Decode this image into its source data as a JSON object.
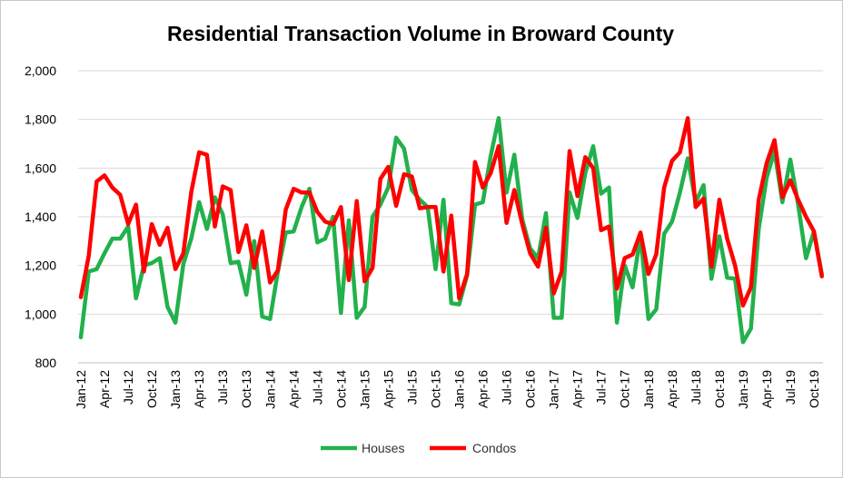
{
  "chart_data": {
    "type": "line",
    "title": "Residential Transaction Volume in Broward County",
    "xlabel": "",
    "ylabel": "",
    "ylim": [
      800,
      2000
    ],
    "y_ticks": [
      "800",
      "1,000",
      "1,200",
      "1,400",
      "1,600",
      "1,800",
      "2,000"
    ],
    "y_tick_values": [
      800,
      1000,
      1200,
      1400,
      1600,
      1800,
      2000
    ],
    "grid": true,
    "legend_position": "bottom",
    "x": [
      "Jan-12",
      "Feb-12",
      "Mar-12",
      "Apr-12",
      "May-12",
      "Jun-12",
      "Jul-12",
      "Aug-12",
      "Sep-12",
      "Oct-12",
      "Nov-12",
      "Dec-12",
      "Jan-13",
      "Feb-13",
      "Mar-13",
      "Apr-13",
      "May-13",
      "Jun-13",
      "Jul-13",
      "Aug-13",
      "Sep-13",
      "Oct-13",
      "Nov-13",
      "Dec-13",
      "Jan-14",
      "Feb-14",
      "Mar-14",
      "Apr-14",
      "May-14",
      "Jun-14",
      "Jul-14",
      "Aug-14",
      "Sep-14",
      "Oct-14",
      "Nov-14",
      "Dec-14",
      "Jan-15",
      "Feb-15",
      "Mar-15",
      "Apr-15",
      "May-15",
      "Jun-15",
      "Jul-15",
      "Aug-15",
      "Sep-15",
      "Oct-15",
      "Nov-15",
      "Dec-15",
      "Jan-16",
      "Feb-16",
      "Mar-16",
      "Apr-16",
      "May-16",
      "Jun-16",
      "Jul-16",
      "Aug-16",
      "Sep-16",
      "Oct-16",
      "Nov-16",
      "Dec-16",
      "Jan-17",
      "Feb-17",
      "Mar-17",
      "Apr-17",
      "May-17",
      "Jun-17",
      "Jul-17",
      "Aug-17",
      "Sep-17",
      "Oct-17",
      "Nov-17",
      "Dec-17",
      "Jan-18",
      "Feb-18",
      "Mar-18",
      "Apr-18",
      "May-18",
      "Jun-18",
      "Jul-18",
      "Aug-18",
      "Sep-18",
      "Oct-18",
      "Nov-18",
      "Dec-18",
      "Jan-19",
      "Feb-19",
      "Mar-19",
      "Apr-19",
      "May-19",
      "Jun-19",
      "Jul-19",
      "Aug-19",
      "Sep-19",
      "Oct-19",
      "Nov-19"
    ],
    "x_tick_labels": [
      "Jan-12",
      "Apr-12",
      "Jul-12",
      "Oct-12",
      "Jan-13",
      "Apr-13",
      "Jul-13",
      "Oct-13",
      "Jan-14",
      "Apr-14",
      "Jul-14",
      "Oct-14",
      "Jan-15",
      "Apr-15",
      "Jul-15",
      "Oct-15",
      "Jan-16",
      "Apr-16",
      "Jul-16",
      "Oct-16",
      "Jan-17",
      "Apr-17",
      "Jul-17",
      "Oct-17",
      "Jan-18",
      "Apr-18",
      "Jul-18",
      "Oct-18",
      "Jan-19",
      "Apr-19",
      "Jul-19",
      "Oct-19"
    ],
    "series": [
      {
        "name": "Houses",
        "color": "#22b14c",
        "values": [
          905,
          1175,
          1185,
          1250,
          1310,
          1310,
          1360,
          1065,
          1200,
          1210,
          1230,
          1030,
          965,
          1205,
          1310,
          1460,
          1350,
          1480,
          1410,
          1210,
          1215,
          1080,
          1300,
          990,
          980,
          1175,
          1335,
          1340,
          1440,
          1515,
          1295,
          1310,
          1400,
          1005,
          1385,
          985,
          1030,
          1400,
          1450,
          1520,
          1725,
          1680,
          1510,
          1470,
          1440,
          1185,
          1470,
          1045,
          1040,
          1160,
          1450,
          1460,
          1650,
          1805,
          1500,
          1655,
          1390,
          1270,
          1230,
          1415,
          985,
          985,
          1500,
          1395,
          1580,
          1690,
          1495,
          1520,
          965,
          1200,
          1110,
          1325,
          980,
          1020,
          1330,
          1380,
          1500,
          1640,
          1460,
          1530,
          1145,
          1320,
          1150,
          1145,
          885,
          940,
          1350,
          1560,
          1670,
          1460,
          1635,
          1450,
          1230,
          1340,
          1165
        ]
      },
      {
        "name": "Condos",
        "color": "#ff0000",
        "values": [
          1070,
          1240,
          1545,
          1570,
          1520,
          1490,
          1370,
          1450,
          1175,
          1370,
          1285,
          1355,
          1185,
          1250,
          1500,
          1665,
          1655,
          1360,
          1525,
          1510,
          1255,
          1365,
          1190,
          1340,
          1130,
          1180,
          1430,
          1515,
          1500,
          1500,
          1420,
          1380,
          1370,
          1440,
          1140,
          1465,
          1135,
          1190,
          1555,
          1605,
          1445,
          1575,
          1565,
          1435,
          1440,
          1440,
          1175,
          1405,
          1065,
          1165,
          1625,
          1520,
          1580,
          1690,
          1375,
          1510,
          1370,
          1250,
          1195,
          1355,
          1085,
          1175,
          1670,
          1485,
          1645,
          1600,
          1345,
          1360,
          1105,
          1230,
          1245,
          1335,
          1165,
          1245,
          1520,
          1630,
          1665,
          1805,
          1440,
          1475,
          1195,
          1470,
          1310,
          1200,
          1035,
          1110,
          1470,
          1620,
          1715,
          1480,
          1550,
          1470,
          1400,
          1340,
          1155
        ]
      }
    ]
  }
}
